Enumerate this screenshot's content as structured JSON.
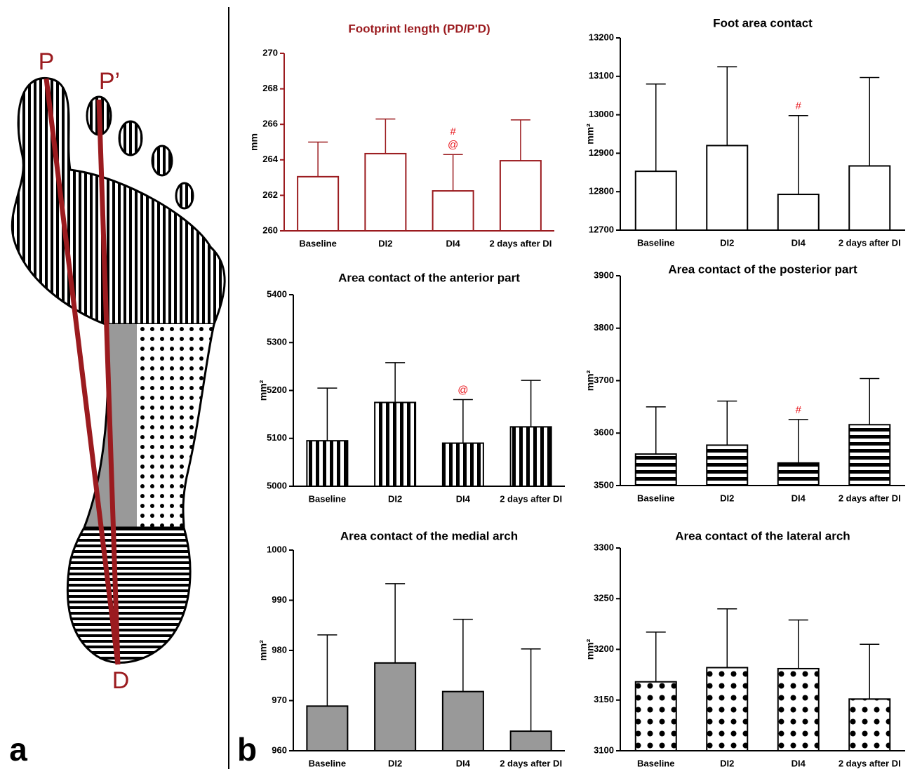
{
  "diagram": {
    "points": [
      "P",
      "P’",
      "D"
    ],
    "panel_labels": [
      "a",
      "b"
    ]
  },
  "chart_data": [
    {
      "type": "bar",
      "title": "Footprint length (PD/P'D)",
      "ylabel": "mm",
      "categories": [
        "Baseline",
        "DI2",
        "DI4",
        "2 days after DI"
      ],
      "values": [
        263.05,
        264.35,
        262.25,
        263.95
      ],
      "errors": [
        1.95,
        1.95,
        2.05,
        2.3
      ],
      "ylim": [
        260,
        270
      ],
      "yticks": [
        260,
        262,
        264,
        266,
        268,
        270
      ],
      "color": "#9b1b1f",
      "fill": "#ffffff",
      "annotations": [
        {
          "category": "DI4",
          "texts": [
            "#",
            "@"
          ]
        }
      ]
    },
    {
      "type": "bar",
      "title": "Foot area contact",
      "ylabel": "mm²",
      "categories": [
        "Baseline",
        "DI2",
        "DI4",
        "2 days after DI"
      ],
      "values": [
        12853,
        12920,
        12793,
        12867
      ],
      "errors": [
        227,
        205,
        205,
        230
      ],
      "ylim": [
        12700,
        13200
      ],
      "yticks": [
        12700,
        12800,
        12900,
        13000,
        13100,
        13200
      ],
      "color": "#000000",
      "fill": "#ffffff",
      "annotations": [
        {
          "category": "DI4",
          "texts": [
            "#"
          ]
        }
      ]
    },
    {
      "type": "bar",
      "title": "Area contact of the anterior part",
      "ylabel": "mm²",
      "categories": [
        "Baseline",
        "DI2",
        "DI4",
        "2 days after DI"
      ],
      "values": [
        5095,
        5175,
        5090,
        5124
      ],
      "errors": [
        110,
        83,
        91,
        97
      ],
      "ylim": [
        5000,
        5400
      ],
      "yticks": [
        5000,
        5100,
        5200,
        5300,
        5400
      ],
      "color": "#000000",
      "fill": "vertical-stripes",
      "annotations": [
        {
          "category": "DI4",
          "texts": [
            "@"
          ]
        }
      ]
    },
    {
      "type": "bar",
      "title": "Area contact of the posterior part",
      "ylabel": "mm²",
      "categories": [
        "Baseline",
        "DI2",
        "DI4",
        "2 days after DI"
      ],
      "values": [
        3560,
        3577,
        3543,
        3616
      ],
      "errors": [
        90,
        84,
        83,
        88
      ],
      "ylim": [
        3500,
        3900
      ],
      "yticks": [
        3500,
        3600,
        3700,
        3800,
        3900
      ],
      "color": "#000000",
      "fill": "horizontal-stripes",
      "annotations": [
        {
          "category": "DI4",
          "texts": [
            "#"
          ]
        }
      ]
    },
    {
      "type": "bar",
      "title": "Area contact of the medial arch",
      "ylabel": "mm²",
      "categories": [
        "Baseline",
        "DI2",
        "DI4",
        "2 days after DI"
      ],
      "values": [
        968.9,
        977.5,
        971.8,
        963.9
      ],
      "errors": [
        14.2,
        15.8,
        14.4,
        16.4
      ],
      "ylim": [
        960,
        1000
      ],
      "yticks": [
        960,
        970,
        980,
        990,
        1000
      ],
      "color": "#000000",
      "fill": "#999999"
    },
    {
      "type": "bar",
      "title": "Area contact of the lateral arch",
      "ylabel": "mm²",
      "categories": [
        "Baseline",
        "DI2",
        "DI4",
        "2 days after DI"
      ],
      "values": [
        3168,
        3182,
        3181,
        3151
      ],
      "errors": [
        49,
        58,
        48,
        54
      ],
      "ylim": [
        3100,
        3300
      ],
      "yticks": [
        3100,
        3150,
        3200,
        3250,
        3300
      ],
      "color": "#000000",
      "fill": "dots"
    }
  ]
}
